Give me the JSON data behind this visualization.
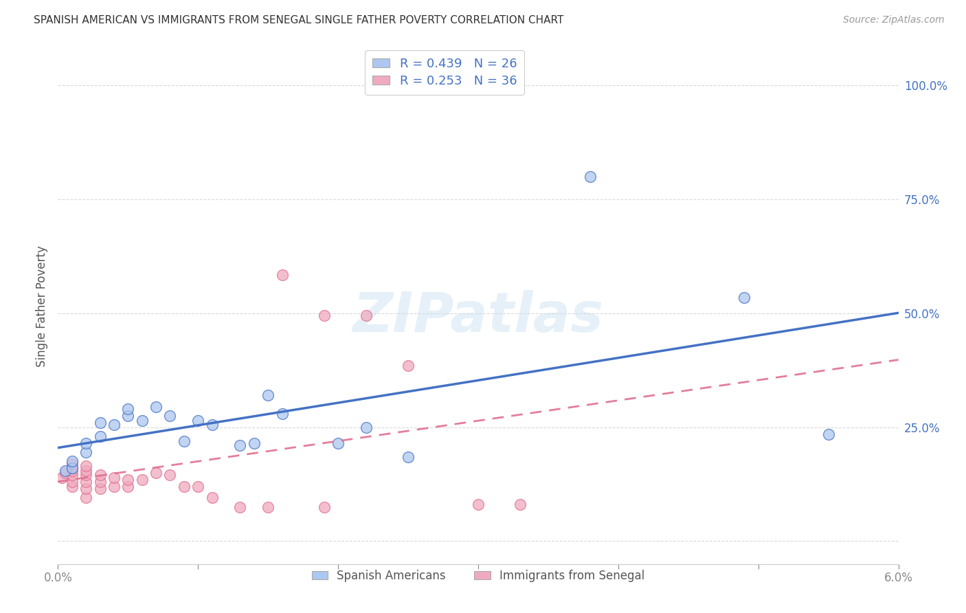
{
  "title": "SPANISH AMERICAN VS IMMIGRANTS FROM SENEGAL SINGLE FATHER POVERTY CORRELATION CHART",
  "source": "Source: ZipAtlas.com",
  "ylabel": "Single Father Poverty",
  "xlim": [
    0.0,
    0.06
  ],
  "ylim": [
    -0.05,
    1.08
  ],
  "watermark": "ZIPatlas",
  "blue_R": 0.439,
  "blue_N": 26,
  "pink_R": 0.253,
  "pink_N": 36,
  "blue_color": "#adc8f0",
  "pink_color": "#f0aac0",
  "blue_line_color": "#4472c4",
  "pink_line_color": "#e07090",
  "blue_scatter": [
    [
      0.0005,
      0.155
    ],
    [
      0.001,
      0.16
    ],
    [
      0.001,
      0.175
    ],
    [
      0.002,
      0.195
    ],
    [
      0.002,
      0.215
    ],
    [
      0.003,
      0.23
    ],
    [
      0.003,
      0.26
    ],
    [
      0.004,
      0.255
    ],
    [
      0.005,
      0.275
    ],
    [
      0.005,
      0.29
    ],
    [
      0.006,
      0.265
    ],
    [
      0.007,
      0.295
    ],
    [
      0.008,
      0.275
    ],
    [
      0.009,
      0.22
    ],
    [
      0.01,
      0.265
    ],
    [
      0.011,
      0.255
    ],
    [
      0.013,
      0.21
    ],
    [
      0.014,
      0.215
    ],
    [
      0.015,
      0.32
    ],
    [
      0.016,
      0.28
    ],
    [
      0.02,
      0.215
    ],
    [
      0.022,
      0.25
    ],
    [
      0.025,
      0.185
    ],
    [
      0.038,
      0.8
    ],
    [
      0.049,
      0.535
    ],
    [
      0.055,
      0.235
    ]
  ],
  "pink_scatter": [
    [
      0.0003,
      0.14
    ],
    [
      0.0005,
      0.15
    ],
    [
      0.001,
      0.12
    ],
    [
      0.001,
      0.13
    ],
    [
      0.001,
      0.145
    ],
    [
      0.001,
      0.155
    ],
    [
      0.001,
      0.16
    ],
    [
      0.001,
      0.17
    ],
    [
      0.002,
      0.095
    ],
    [
      0.002,
      0.115
    ],
    [
      0.002,
      0.13
    ],
    [
      0.002,
      0.145
    ],
    [
      0.002,
      0.155
    ],
    [
      0.002,
      0.165
    ],
    [
      0.003,
      0.115
    ],
    [
      0.003,
      0.13
    ],
    [
      0.003,
      0.145
    ],
    [
      0.004,
      0.12
    ],
    [
      0.004,
      0.14
    ],
    [
      0.005,
      0.12
    ],
    [
      0.005,
      0.135
    ],
    [
      0.006,
      0.135
    ],
    [
      0.007,
      0.15
    ],
    [
      0.008,
      0.145
    ],
    [
      0.009,
      0.12
    ],
    [
      0.01,
      0.12
    ],
    [
      0.011,
      0.095
    ],
    [
      0.013,
      0.075
    ],
    [
      0.015,
      0.075
    ],
    [
      0.016,
      0.585
    ],
    [
      0.019,
      0.495
    ],
    [
      0.019,
      0.075
    ],
    [
      0.022,
      0.495
    ],
    [
      0.025,
      0.385
    ],
    [
      0.03,
      0.08
    ],
    [
      0.033,
      0.08
    ]
  ],
  "background_color": "#ffffff",
  "grid_color": "#d0d0d0",
  "title_color": "#333333",
  "tick_color_y": "#4472c4",
  "tick_color_x": "#888888"
}
